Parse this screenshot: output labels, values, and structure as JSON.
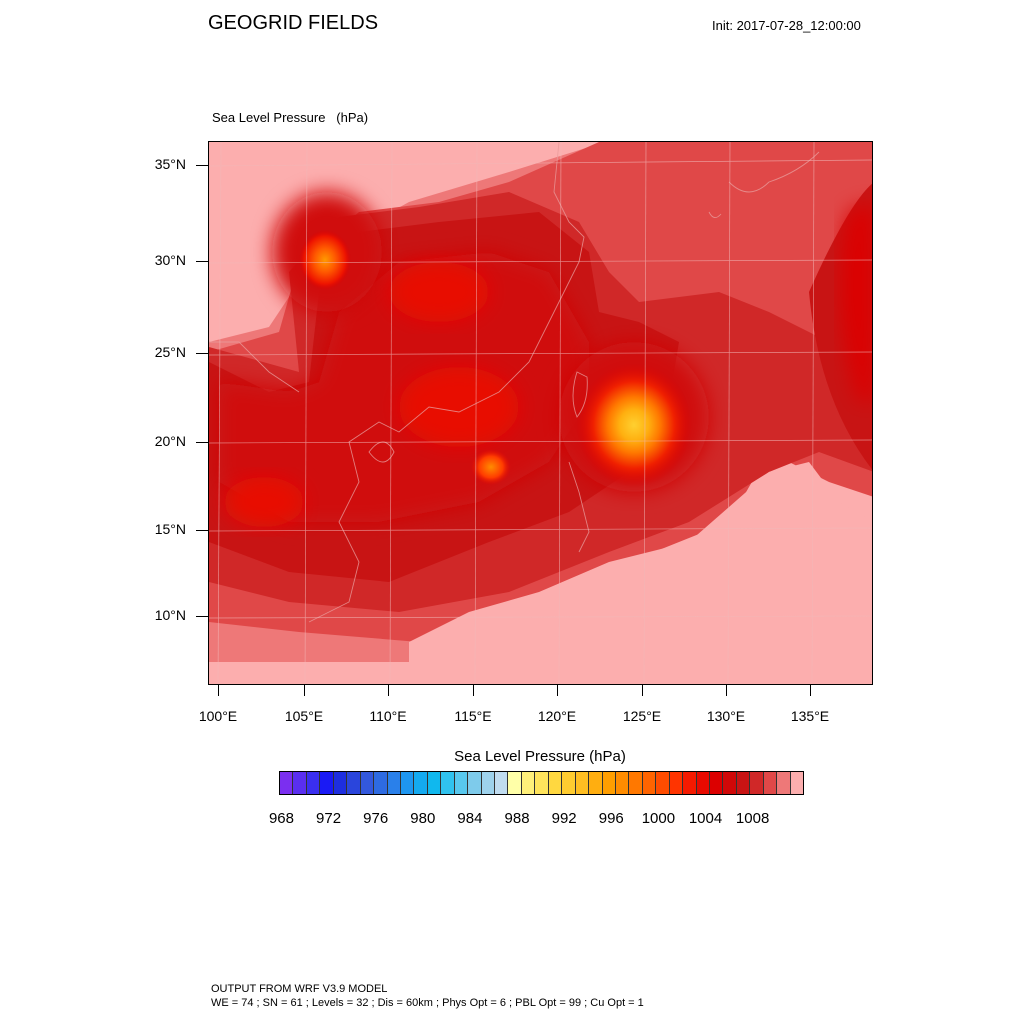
{
  "title": "GEOGRID FIELDS",
  "init_label": "Init: 2017-07-28_12:00:00",
  "subtitle": "Sea Level Pressure   (hPa)",
  "lat_labels": [
    "35°N",
    "30°N",
    "25°N",
    "20°N",
    "15°N",
    "10°N"
  ],
  "lon_labels": [
    "100°E",
    "105°E",
    "110°E",
    "115°E",
    "120°E",
    "125°E",
    "130°E",
    "135°E"
  ],
  "colorbar": {
    "title": "Sea Level Pressure  (hPa)",
    "labels": [
      "968",
      "972",
      "976",
      "980",
      "984",
      "988",
      "992",
      "996",
      "1000",
      "1004",
      "1008"
    ],
    "colors": [
      "#7b2ff0",
      "#5a2ff0",
      "#3a2ff0",
      "#1a1af5",
      "#1e2ee0",
      "#2a45dc",
      "#3358dd",
      "#2e6be2",
      "#2a80ea",
      "#1e96f0",
      "#14aaf0",
      "#10b8ee",
      "#30c2ee",
      "#58c8ee",
      "#7ecbeb",
      "#9ed2ec",
      "#c0dcf0",
      "#ffffa8",
      "#fff07a",
      "#ffe45c",
      "#ffd840",
      "#ffcc30",
      "#ffbe22",
      "#ffae10",
      "#ff9e00",
      "#ff8c00",
      "#ff7800",
      "#ff6400",
      "#ff4c00",
      "#ff3400",
      "#f51a00",
      "#e80a00",
      "#dc0000",
      "#d00808",
      "#c81414",
      "#d02828",
      "#e04848",
      "#ee7878",
      "#fcaeae"
    ]
  },
  "footer_lines": [
    "OUTPUT FROM WRF V3.9 MODEL",
    "WE = 74 ; SN = 61 ; Levels = 32 ; Dis = 60km ; Phys Opt = 6 ; PBL Opt = 99 ; Cu Opt = 1"
  ]
}
